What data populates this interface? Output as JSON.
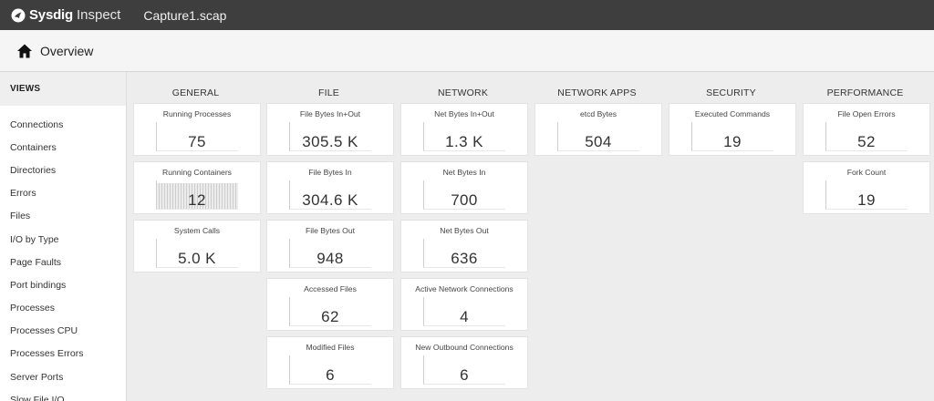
{
  "app": {
    "brand": "Sysdig",
    "product": "Inspect",
    "capture_name": "Capture1.scap"
  },
  "header": {
    "title": "Overview",
    "icon": "home-icon"
  },
  "sidebar": {
    "heading": "VIEWS",
    "items": [
      "Connections",
      "Containers",
      "Directories",
      "Errors",
      "Files",
      "I/O by Type",
      "Page Faults",
      "Port bindings",
      "Processes",
      "Processes CPU",
      "Processes Errors",
      "Server Ports",
      "Slow File I/O"
    ]
  },
  "columns": {
    "general": {
      "title": "GENERAL",
      "tiles": [
        {
          "label": "Running Processes",
          "value": "75"
        },
        {
          "label": "Running Containers",
          "value": "12"
        },
        {
          "label": "System Calls",
          "value": "5.0 K"
        }
      ]
    },
    "file": {
      "title": "FILE",
      "tiles": [
        {
          "label": "File Bytes In+Out",
          "value": "305.5 K"
        },
        {
          "label": "File Bytes In",
          "value": "304.6 K"
        },
        {
          "label": "File Bytes Out",
          "value": "948"
        },
        {
          "label": "Accessed Files",
          "value": "62"
        },
        {
          "label": "Modified Files",
          "value": "6"
        }
      ]
    },
    "network": {
      "title": "NETWORK",
      "tiles": [
        {
          "label": "Net Bytes In+Out",
          "value": "1.3 K"
        },
        {
          "label": "Net Bytes In",
          "value": "700"
        },
        {
          "label": "Net Bytes Out",
          "value": "636"
        },
        {
          "label": "Active Network Connections",
          "value": "4"
        },
        {
          "label": "New Outbound Connections",
          "value": "6"
        }
      ]
    },
    "network_apps": {
      "title": "NETWORK APPS",
      "tiles": [
        {
          "label": "etcd Bytes",
          "value": "504"
        }
      ]
    },
    "security": {
      "title": "SECURITY",
      "tiles": [
        {
          "label": "Executed Commands",
          "value": "19"
        }
      ]
    },
    "performance": {
      "title": "PERFORMANCE",
      "tiles": [
        {
          "label": "File Open Errors",
          "value": "52"
        },
        {
          "label": "Fork Count",
          "value": "19"
        }
      ]
    }
  }
}
